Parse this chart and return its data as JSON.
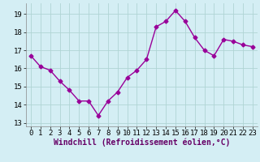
{
  "x": [
    0,
    1,
    2,
    3,
    4,
    5,
    6,
    7,
    8,
    9,
    10,
    11,
    12,
    13,
    14,
    15,
    16,
    17,
    18,
    19,
    20,
    21,
    22,
    23
  ],
  "y": [
    16.7,
    16.1,
    15.9,
    15.3,
    14.8,
    14.2,
    14.2,
    13.4,
    14.2,
    14.7,
    15.5,
    15.9,
    16.5,
    18.3,
    18.6,
    19.2,
    18.6,
    17.7,
    17.0,
    16.7,
    17.6,
    17.5,
    17.3,
    17.2
  ],
  "line_color": "#990099",
  "marker": "D",
  "markersize": 2.5,
  "linewidth": 1.0,
  "xlabel": "Windchill (Refroidissement éolien,°C)",
  "ylim": [
    12.8,
    19.6
  ],
  "yticks": [
    13,
    14,
    15,
    16,
    17,
    18,
    19
  ],
  "xticks": [
    0,
    1,
    2,
    3,
    4,
    5,
    6,
    7,
    8,
    9,
    10,
    11,
    12,
    13,
    14,
    15,
    16,
    17,
    18,
    19,
    20,
    21,
    22,
    23
  ],
  "bg_color": "#d4eef4",
  "grid_color": "#b0d4d4",
  "tick_fontsize": 6.5,
  "xlabel_fontsize": 7.0
}
